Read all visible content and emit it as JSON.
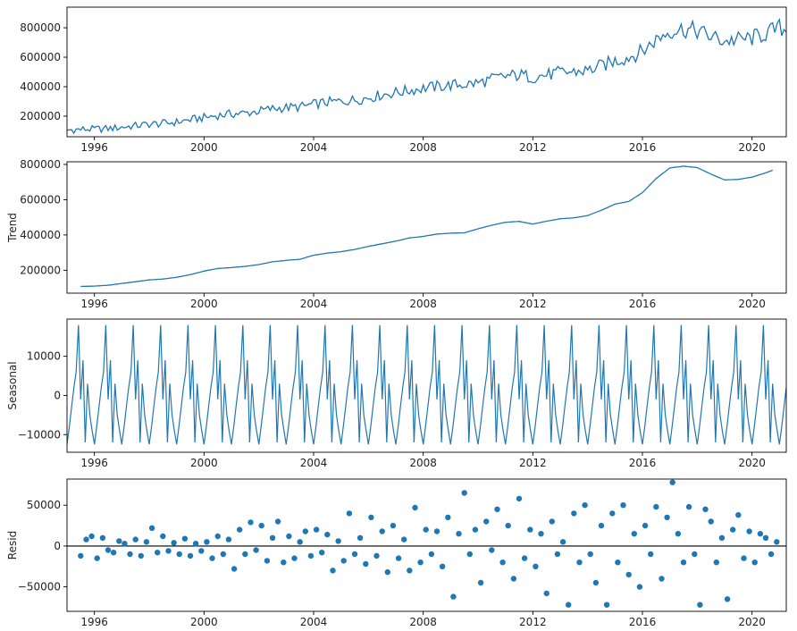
{
  "colors": {
    "line": "#1f77b4",
    "marker": "#1f77b4",
    "axis": "#000000",
    "zero_line": "#000000"
  },
  "chart_data": [
    {
      "type": "line",
      "panel": "observed",
      "ylabel": "",
      "xlim": [
        1995.0,
        2021.25
      ],
      "ylim": [
        60000,
        940000
      ],
      "x_ticks": [
        1996,
        2000,
        2004,
        2008,
        2012,
        2016,
        2020
      ],
      "x_tick_labels": [
        "1996",
        "2000",
        "2004",
        "2008",
        "2012",
        "2016",
        "2020"
      ],
      "y_ticks": [
        200000,
        400000,
        600000,
        800000
      ],
      "y_tick_labels": [
        "200000",
        "400000",
        "600000",
        "800000"
      ],
      "grid": false,
      "series": [
        {
          "x": [
            1995.0,
            1995.5,
            1996.0,
            1996.5,
            1997.0,
            1997.5,
            1998.0,
            1998.5,
            1999.0,
            1999.5,
            2000.0,
            2000.5,
            2001.0,
            2001.5,
            2002.0,
            2002.5,
            2003.0,
            2003.5,
            2004.0,
            2004.5,
            2005.0,
            2005.5,
            2006.0,
            2006.5,
            2007.0,
            2007.5,
            2008.0,
            2008.5,
            2009.0,
            2009.5,
            2010.0,
            2010.5,
            2011.0,
            2011.5,
            2012.0,
            2012.5,
            2013.0,
            2013.5,
            2014.0,
            2014.5,
            2015.0,
            2015.5,
            2016.0,
            2016.5,
            2017.0,
            2017.5,
            2018.0,
            2018.5,
            2019.0,
            2019.5,
            2020.0,
            2020.5,
            2021.0,
            2021.25
          ],
          "values": [
            105000,
            110000,
            112000,
            115000,
            125000,
            135000,
            145000,
            150000,
            160000,
            175000,
            190000,
            205000,
            215000,
            220000,
            235000,
            250000,
            258000,
            262000,
            280000,
            295000,
            300000,
            310000,
            325000,
            345000,
            360000,
            375000,
            390000,
            400000,
            410000,
            415000,
            425000,
            450000,
            470000,
            480000,
            465000,
            480000,
            495000,
            500000,
            510000,
            540000,
            575000,
            600000,
            640000,
            720000,
            780000,
            790000,
            780000,
            740000,
            710000,
            720000,
            730000,
            760000,
            800000,
            780000
          ]
        }
      ]
    },
    {
      "type": "line",
      "panel": "trend",
      "ylabel": "Trend",
      "xlim": [
        1995.0,
        2021.25
      ],
      "ylim": [
        70000,
        815000
      ],
      "x_ticks": [
        1996,
        2000,
        2004,
        2008,
        2012,
        2016,
        2020
      ],
      "x_tick_labels": [
        "1996",
        "2000",
        "2004",
        "2008",
        "2012",
        "2016",
        "2020"
      ],
      "y_ticks": [
        200000,
        400000,
        600000,
        800000
      ],
      "y_tick_labels": [
        "200000",
        "400000",
        "600000",
        "800000"
      ],
      "grid": false,
      "series": [
        {
          "x": [
            1995.5,
            1996.0,
            1996.5,
            1997.0,
            1997.5,
            1998.0,
            1998.5,
            1999.0,
            1999.5,
            2000.0,
            2000.5,
            2001.0,
            2001.5,
            2002.0,
            2002.5,
            2003.0,
            2003.5,
            2004.0,
            2004.5,
            2005.0,
            2005.5,
            2006.0,
            2006.5,
            2007.0,
            2007.5,
            2008.0,
            2008.5,
            2009.0,
            2009.5,
            2010.0,
            2010.5,
            2011.0,
            2011.5,
            2012.0,
            2012.5,
            2013.0,
            2013.5,
            2014.0,
            2014.5,
            2015.0,
            2015.5,
            2016.0,
            2016.5,
            2017.0,
            2017.5,
            2018.0,
            2018.5,
            2019.0,
            2019.5,
            2020.0,
            2020.5,
            2020.8
          ],
          "values": [
            108000,
            110000,
            115000,
            125000,
            135000,
            145000,
            150000,
            160000,
            175000,
            195000,
            210000,
            215000,
            222000,
            232000,
            248000,
            256000,
            262000,
            285000,
            297000,
            305000,
            318000,
            335000,
            350000,
            365000,
            383000,
            392000,
            405000,
            410000,
            412000,
            435000,
            455000,
            472000,
            477000,
            462000,
            478000,
            492000,
            497000,
            510000,
            540000,
            575000,
            590000,
            640000,
            720000,
            780000,
            790000,
            782000,
            745000,
            712000,
            715000,
            728000,
            752000,
            770000
          ]
        }
      ]
    },
    {
      "type": "line",
      "panel": "seasonal",
      "ylabel": "Seasonal",
      "xlim": [
        1995.0,
        2021.25
      ],
      "ylim": [
        -14500,
        19500
      ],
      "x_ticks": [
        1996,
        2000,
        2004,
        2008,
        2012,
        2016,
        2020
      ],
      "x_tick_labels": [
        "1996",
        "2000",
        "2004",
        "2008",
        "2012",
        "2016",
        "2020"
      ],
      "y_ticks": [
        -10000,
        0,
        10000
      ],
      "y_tick_labels": [
        "−10000",
        "0",
        "10000"
      ],
      "grid": false,
      "pattern": {
        "period_years": 1,
        "monthly_values": [
          -12500,
          -8000,
          -3000,
          2000,
          6000,
          18000,
          -1000,
          9000,
          -12000,
          3000,
          -5000,
          -9000
        ]
      }
    },
    {
      "type": "scatter",
      "panel": "resid",
      "ylabel": "Resid",
      "xlim": [
        1995.0,
        2021.25
      ],
      "ylim": [
        -80000,
        82000
      ],
      "x_ticks": [
        1996,
        2000,
        2004,
        2008,
        2012,
        2016,
        2020
      ],
      "x_tick_labels": [
        "1996",
        "2000",
        "2004",
        "2008",
        "2012",
        "2016",
        "2020"
      ],
      "y_ticks": [
        -50000,
        0,
        50000
      ],
      "y_tick_labels": [
        "−50000",
        "0",
        "50000"
      ],
      "grid": false,
      "zero_line": true,
      "points": [
        [
          1995.5,
          -12000
        ],
        [
          1995.7,
          8000
        ],
        [
          1995.9,
          12000
        ],
        [
          1996.1,
          -15000
        ],
        [
          1996.3,
          10000
        ],
        [
          1996.5,
          -5000
        ],
        [
          1996.7,
          -8000
        ],
        [
          1996.9,
          6000
        ],
        [
          1997.1,
          3000
        ],
        [
          1997.3,
          -10000
        ],
        [
          1997.5,
          8000
        ],
        [
          1997.7,
          -12000
        ],
        [
          1997.9,
          5000
        ],
        [
          1998.1,
          22000
        ],
        [
          1998.3,
          -8000
        ],
        [
          1998.5,
          12000
        ],
        [
          1998.7,
          -6000
        ],
        [
          1998.9,
          4000
        ],
        [
          1999.1,
          -10000
        ],
        [
          1999.3,
          9000
        ],
        [
          1999.5,
          -12000
        ],
        [
          1999.7,
          3000
        ],
        [
          1999.9,
          -6000
        ],
        [
          2000.1,
          5000
        ],
        [
          2000.3,
          -15000
        ],
        [
          2000.5,
          12000
        ],
        [
          2000.7,
          -10000
        ],
        [
          2000.9,
          8000
        ],
        [
          2001.1,
          -28000
        ],
        [
          2001.3,
          20000
        ],
        [
          2001.5,
          -10000
        ],
        [
          2001.7,
          29000
        ],
        [
          2001.9,
          -5000
        ],
        [
          2002.1,
          25000
        ],
        [
          2002.3,
          -18000
        ],
        [
          2002.5,
          10000
        ],
        [
          2002.7,
          30000
        ],
        [
          2002.9,
          -20000
        ],
        [
          2003.1,
          12000
        ],
        [
          2003.3,
          -15000
        ],
        [
          2003.5,
          5000
        ],
        [
          2003.7,
          18000
        ],
        [
          2003.9,
          -12000
        ],
        [
          2004.1,
          20000
        ],
        [
          2004.3,
          -8000
        ],
        [
          2004.5,
          14000
        ],
        [
          2004.7,
          -30000
        ],
        [
          2004.9,
          6000
        ],
        [
          2005.1,
          -18000
        ],
        [
          2005.3,
          40000
        ],
        [
          2005.5,
          -10000
        ],
        [
          2005.7,
          10000
        ],
        [
          2005.9,
          -22000
        ],
        [
          2006.1,
          35000
        ],
        [
          2006.3,
          -12000
        ],
        [
          2006.5,
          18000
        ],
        [
          2006.7,
          -32000
        ],
        [
          2006.9,
          25000
        ],
        [
          2007.1,
          -15000
        ],
        [
          2007.3,
          8000
        ],
        [
          2007.5,
          -30000
        ],
        [
          2007.7,
          47000
        ],
        [
          2007.9,
          -20000
        ],
        [
          2008.1,
          20000
        ],
        [
          2008.3,
          -10000
        ],
        [
          2008.5,
          18000
        ],
        [
          2008.7,
          -25000
        ],
        [
          2008.9,
          35000
        ],
        [
          2009.1,
          -62000
        ],
        [
          2009.3,
          15000
        ],
        [
          2009.5,
          65000
        ],
        [
          2009.7,
          -10000
        ],
        [
          2009.9,
          20000
        ],
        [
          2010.1,
          -45000
        ],
        [
          2010.3,
          30000
        ],
        [
          2010.5,
          -5000
        ],
        [
          2010.7,
          45000
        ],
        [
          2010.9,
          -20000
        ],
        [
          2011.1,
          25000
        ],
        [
          2011.3,
          -40000
        ],
        [
          2011.5,
          58000
        ],
        [
          2011.7,
          -15000
        ],
        [
          2011.9,
          20000
        ],
        [
          2012.1,
          -25000
        ],
        [
          2012.3,
          15000
        ],
        [
          2012.5,
          -58000
        ],
        [
          2012.7,
          30000
        ],
        [
          2012.9,
          -10000
        ],
        [
          2013.1,
          5000
        ],
        [
          2013.3,
          -72000
        ],
        [
          2013.5,
          40000
        ],
        [
          2013.7,
          -20000
        ],
        [
          2013.9,
          50000
        ],
        [
          2014.1,
          -10000
        ],
        [
          2014.3,
          -45000
        ],
        [
          2014.5,
          25000
        ],
        [
          2014.7,
          -72000
        ],
        [
          2014.9,
          40000
        ],
        [
          2015.1,
          -20000
        ],
        [
          2015.3,
          50000
        ],
        [
          2015.5,
          -35000
        ],
        [
          2015.7,
          15000
        ],
        [
          2015.9,
          -50000
        ],
        [
          2016.1,
          25000
        ],
        [
          2016.3,
          -10000
        ],
        [
          2016.5,
          48000
        ],
        [
          2016.7,
          -40000
        ],
        [
          2016.9,
          35000
        ],
        [
          2017.1,
          78000
        ],
        [
          2017.3,
          15000
        ],
        [
          2017.5,
          -20000
        ],
        [
          2017.7,
          48000
        ],
        [
          2017.9,
          -10000
        ],
        [
          2018.1,
          -72000
        ],
        [
          2018.3,
          45000
        ],
        [
          2018.5,
          30000
        ],
        [
          2018.7,
          -20000
        ],
        [
          2018.9,
          10000
        ],
        [
          2019.1,
          -65000
        ],
        [
          2019.3,
          20000
        ],
        [
          2019.5,
          38000
        ],
        [
          2019.7,
          -15000
        ],
        [
          2019.9,
          18000
        ],
        [
          2020.1,
          -20000
        ],
        [
          2020.3,
          15000
        ],
        [
          2020.5,
          10000
        ],
        [
          2020.7,
          -10000
        ],
        [
          2020.9,
          5000
        ]
      ]
    }
  ]
}
